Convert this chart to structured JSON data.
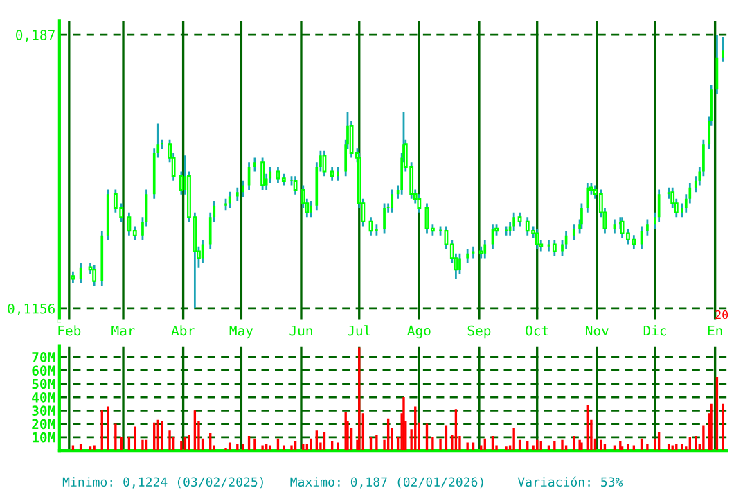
{
  "chart_data": [
    {
      "type": "candlestick",
      "color": "#00ff00",
      "x": [
        "2025-02-03",
        "2025-02-07",
        "2025-02-12",
        "2025-02-14",
        "2025-02-18",
        "2025-02-21",
        "2025-02-25",
        "2025-02-28",
        "2025-03-04",
        "2025-03-07",
        "2025-03-11",
        "2025-03-13",
        "2025-03-17",
        "2025-03-19",
        "2025-03-21",
        "2025-03-25",
        "2025-03-27",
        "2025-03-31",
        "2025-04-02",
        "2025-04-04",
        "2025-04-07",
        "2025-04-09",
        "2025-04-11",
        "2025-04-15",
        "2025-04-17",
        "2025-04-23",
        "2025-04-25",
        "2025-04-29",
        "2025-05-02",
        "2025-05-05",
        "2025-05-08",
        "2025-05-12",
        "2025-05-14",
        "2025-05-16",
        "2025-05-20",
        "2025-05-23",
        "2025-05-27",
        "2025-05-29",
        "2025-06-02",
        "2025-06-04",
        "2025-06-06",
        "2025-06-09",
        "2025-06-11",
        "2025-06-13",
        "2025-06-17",
        "2025-06-20",
        "2025-06-24",
        "2025-06-25",
        "2025-06-27",
        "2025-06-30",
        "2025-07-01",
        "2025-07-03",
        "2025-07-07",
        "2025-07-10",
        "2025-07-14",
        "2025-07-16",
        "2025-07-18",
        "2025-07-21",
        "2025-07-23",
        "2025-07-24",
        "2025-07-25",
        "2025-07-28",
        "2025-07-30",
        "2025-08-01",
        "2025-08-05",
        "2025-08-08",
        "2025-08-12",
        "2025-08-15",
        "2025-08-18",
        "2025-08-20",
        "2025-08-22",
        "2025-08-26",
        "2025-08-29",
        "2025-09-02",
        "2025-09-04",
        "2025-09-08",
        "2025-09-10",
        "2025-09-15",
        "2025-09-17",
        "2025-09-19",
        "2025-09-22",
        "2025-09-26",
        "2025-09-29",
        "2025-10-01",
        "2025-10-03",
        "2025-10-07",
        "2025-10-10",
        "2025-10-14",
        "2025-10-16",
        "2025-10-20",
        "2025-10-23",
        "2025-10-24",
        "2025-10-27",
        "2025-10-29",
        "2025-10-31",
        "2025-11-03",
        "2025-11-05",
        "2025-11-10",
        "2025-11-13",
        "2025-11-14",
        "2025-11-17",
        "2025-11-20",
        "2025-11-24",
        "2025-11-27",
        "2025-12-01",
        "2025-12-03",
        "2025-12-08",
        "2025-12-10",
        "2025-12-12",
        "2025-12-15",
        "2025-12-17",
        "2025-12-19",
        "2025-12-22",
        "2025-12-24",
        "2025-12-26",
        "2025-12-29",
        "2025-12-30",
        "2026-01-02",
        "2026-01-05"
      ],
      "ohlc": [
        [
          0.124,
          0.1252,
          0.1221,
          0.1233
        ],
        [
          0.1233,
          0.1275,
          0.1221,
          0.1263
        ],
        [
          0.1263,
          0.1275,
          0.1245,
          0.1257
        ],
        [
          0.1257,
          0.1269,
          0.1215,
          0.1227
        ],
        [
          0.1227,
          0.1358,
          0.1215,
          0.1346
        ],
        [
          0.1346,
          0.1466,
          0.1334,
          0.1454
        ],
        [
          0.1454,
          0.1466,
          0.1406,
          0.1418
        ],
        [
          0.1418,
          0.143,
          0.1382,
          0.1394
        ],
        [
          0.1394,
          0.1406,
          0.1346,
          0.1358
        ],
        [
          0.1358,
          0.137,
          0.1334,
          0.1346
        ],
        [
          0.1346,
          0.1394,
          0.1334,
          0.1382
        ],
        [
          0.1382,
          0.1466,
          0.137,
          0.1454
        ],
        [
          0.1454,
          0.1573,
          0.1442,
          0.1561
        ],
        [
          0.1561,
          0.1638,
          0.1549,
          0.1584
        ],
        [
          0.1584,
          0.1596,
          0.1572,
          0.1584
        ],
        [
          0.1584,
          0.1596,
          0.1537,
          0.1549
        ],
        [
          0.1549,
          0.1561,
          0.1489,
          0.1501
        ],
        [
          0.1501,
          0.1513,
          0.1453,
          0.1465
        ],
        [
          0.1465,
          0.1555,
          0.1453,
          0.1501
        ],
        [
          0.1501,
          0.1513,
          0.1382,
          0.1394
        ],
        [
          0.1394,
          0.1406,
          0.1156,
          0.1305
        ],
        [
          0.1305,
          0.1317,
          0.1263,
          0.1287
        ],
        [
          0.1287,
          0.1335,
          0.1275,
          0.1323
        ],
        [
          0.1323,
          0.1406,
          0.1311,
          0.1394
        ],
        [
          0.1394,
          0.1436,
          0.1382,
          0.1424
        ],
        [
          0.1424,
          0.1442,
          0.1412,
          0.143
        ],
        [
          0.143,
          0.146,
          0.1418,
          0.1448
        ],
        [
          0.1448,
          0.1471,
          0.1436,
          0.1459
        ],
        [
          0.1459,
          0.1489,
          0.1447,
          0.1477
        ],
        [
          0.1477,
          0.1537,
          0.1465,
          0.1525
        ],
        [
          0.1525,
          0.1549,
          0.1513,
          0.1537
        ],
        [
          0.1537,
          0.1549,
          0.1465,
          0.1477
        ],
        [
          0.1477,
          0.1507,
          0.1465,
          0.1495
        ],
        [
          0.1495,
          0.1525,
          0.1483,
          0.1513
        ],
        [
          0.1513,
          0.1525,
          0.1483,
          0.1495
        ],
        [
          0.1495,
          0.1507,
          0.1477,
          0.1489
        ],
        [
          0.1489,
          0.1501,
          0.1477,
          0.1489
        ],
        [
          0.1489,
          0.1501,
          0.1453,
          0.1465
        ],
        [
          0.1465,
          0.1477,
          0.1418,
          0.143
        ],
        [
          0.143,
          0.1442,
          0.1394,
          0.1406
        ],
        [
          0.1406,
          0.1436,
          0.1394,
          0.1424
        ],
        [
          0.1424,
          0.1537,
          0.1412,
          0.1525
        ],
        [
          0.1525,
          0.1567,
          0.1513,
          0.1555
        ],
        [
          0.1555,
          0.1567,
          0.1501,
          0.1513
        ],
        [
          0.1513,
          0.1525,
          0.1489,
          0.1501
        ],
        [
          0.1501,
          0.1525,
          0.1489,
          0.1513
        ],
        [
          0.1513,
          0.1596,
          0.1501,
          0.1584
        ],
        [
          0.1584,
          0.1668,
          0.1572,
          0.1632
        ],
        [
          0.1632,
          0.1644,
          0.1549,
          0.1561
        ],
        [
          0.1561,
          0.1573,
          0.1537,
          0.1549
        ],
        [
          0.1549,
          0.1561,
          0.1418,
          0.143
        ],
        [
          0.143,
          0.1442,
          0.137,
          0.1382
        ],
        [
          0.1382,
          0.1394,
          0.1346,
          0.1358
        ],
        [
          0.1358,
          0.1376,
          0.1346,
          0.1364
        ],
        [
          0.1364,
          0.143,
          0.1352,
          0.1418
        ],
        [
          0.1418,
          0.143,
          0.1406,
          0.1418
        ],
        [
          0.1418,
          0.1466,
          0.1406,
          0.1454
        ],
        [
          0.1454,
          0.1477,
          0.1442,
          0.1465
        ],
        [
          0.1465,
          0.1561,
          0.1453,
          0.1549
        ],
        [
          0.1549,
          0.1668,
          0.1537,
          0.1584
        ],
        [
          0.1584,
          0.1596,
          0.1513,
          0.1525
        ],
        [
          0.1525,
          0.1537,
          0.1442,
          0.1454
        ],
        [
          0.1454,
          0.1466,
          0.143,
          0.1442
        ],
        [
          0.1442,
          0.1454,
          0.1406,
          0.1418
        ],
        [
          0.1418,
          0.143,
          0.1352,
          0.1364
        ],
        [
          0.1364,
          0.1376,
          0.1346,
          0.1358
        ],
        [
          0.1358,
          0.137,
          0.1346,
          0.1358
        ],
        [
          0.1358,
          0.137,
          0.1311,
          0.1323
        ],
        [
          0.1323,
          0.1335,
          0.1275,
          0.1287
        ],
        [
          0.1287,
          0.1299,
          0.1233,
          0.1257
        ],
        [
          0.1257,
          0.1299,
          0.1245,
          0.1287
        ],
        [
          0.1287,
          0.1311,
          0.1275,
          0.1299
        ],
        [
          0.1299,
          0.1317,
          0.1287,
          0.1305
        ],
        [
          0.1305,
          0.1317,
          0.1287,
          0.1299
        ],
        [
          0.1299,
          0.1335,
          0.1287,
          0.1323
        ],
        [
          0.1323,
          0.1376,
          0.1311,
          0.1364
        ],
        [
          0.1364,
          0.1376,
          0.1346,
          0.1358
        ],
        [
          0.1358,
          0.137,
          0.1346,
          0.1358
        ],
        [
          0.1358,
          0.1382,
          0.1346,
          0.137
        ],
        [
          0.137,
          0.1406,
          0.1358,
          0.1394
        ],
        [
          0.1394,
          0.1406,
          0.137,
          0.1382
        ],
        [
          0.1382,
          0.1394,
          0.1346,
          0.1358
        ],
        [
          0.1358,
          0.137,
          0.134,
          0.1352
        ],
        [
          0.1352,
          0.1364,
          0.1311,
          0.1323
        ],
        [
          0.1323,
          0.1335,
          0.1305,
          0.1317
        ],
        [
          0.1317,
          0.1335,
          0.1305,
          0.1323
        ],
        [
          0.1323,
          0.1335,
          0.1293,
          0.1305
        ],
        [
          0.1305,
          0.1335,
          0.1293,
          0.1323
        ],
        [
          0.1323,
          0.1358,
          0.1311,
          0.1346
        ],
        [
          0.1346,
          0.1376,
          0.1334,
          0.1364
        ],
        [
          0.1364,
          0.1388,
          0.1352,
          0.1376
        ],
        [
          0.1376,
          0.143,
          0.1364,
          0.1418
        ],
        [
          0.1418,
          0.1483,
          0.1406,
          0.1471
        ],
        [
          0.1471,
          0.1483,
          0.1453,
          0.1465
        ],
        [
          0.1465,
          0.1477,
          0.1442,
          0.1454
        ],
        [
          0.1454,
          0.1466,
          0.1394,
          0.1406
        ],
        [
          0.1406,
          0.1418,
          0.1352,
          0.1364
        ],
        [
          0.1364,
          0.1388,
          0.1352,
          0.1376
        ],
        [
          0.1376,
          0.1394,
          0.1364,
          0.1382
        ],
        [
          0.1382,
          0.1394,
          0.134,
          0.1352
        ],
        [
          0.1352,
          0.1364,
          0.1323,
          0.1335
        ],
        [
          0.1335,
          0.1347,
          0.1311,
          0.1323
        ],
        [
          0.1323,
          0.137,
          0.1311,
          0.1358
        ],
        [
          0.1358,
          0.1388,
          0.1346,
          0.1376
        ],
        [
          0.1376,
          0.1406,
          0.1364,
          0.1394
        ],
        [
          0.1394,
          0.1466,
          0.1382,
          0.1454
        ],
        [
          0.1454,
          0.1471,
          0.1442,
          0.1459
        ],
        [
          0.1459,
          0.1471,
          0.1418,
          0.143
        ],
        [
          0.143,
          0.1442,
          0.1394,
          0.1406
        ],
        [
          0.1406,
          0.143,
          0.1394,
          0.1418
        ],
        [
          0.1418,
          0.1454,
          0.1406,
          0.1442
        ],
        [
          0.1442,
          0.1483,
          0.143,
          0.1471
        ],
        [
          0.1471,
          0.1501,
          0.1459,
          0.1489
        ],
        [
          0.1489,
          0.1525,
          0.1477,
          0.1513
        ],
        [
          0.1513,
          0.1596,
          0.1501,
          0.1584
        ],
        [
          0.1584,
          0.1656,
          0.1572,
          0.1644
        ],
        [
          0.1644,
          0.1739,
          0.1632,
          0.1727
        ],
        [
          0.1727,
          0.187,
          0.1715,
          0.1811
        ],
        [
          0.1811,
          0.1865,
          0.18,
          0.183
        ]
      ],
      "xlim": [
        "2025-01-27",
        "2026-01-07"
      ],
      "ylim": [
        0.1122,
        0.1906
      ],
      "yticks": [
        {
          "value": 0.1156,
          "label": "0,1156"
        },
        {
          "value": 0.187,
          "label": "0,187"
        }
      ],
      "xticks": [
        {
          "value": "2025-02-01",
          "label": "Feb"
        },
        {
          "value": "2025-03-01",
          "label": "Mar"
        },
        {
          "value": "2025-04-01",
          "label": "Abr"
        },
        {
          "value": "2025-05-01",
          "label": "May"
        },
        {
          "value": "2025-06-01",
          "label": "Jun"
        },
        {
          "value": "2025-07-01",
          "label": "Jul"
        },
        {
          "value": "2025-08-01",
          "label": "Ago"
        },
        {
          "value": "2025-09-01",
          "label": "Sep"
        },
        {
          "value": "2025-10-01",
          "label": "Oct"
        },
        {
          "value": "2025-11-01",
          "label": "Nov"
        },
        {
          "value": "2025-12-01",
          "label": "Dic"
        },
        {
          "value": "2026-01-01",
          "label": "En"
        }
      ],
      "grid": true,
      "annotations": [
        "20"
      ]
    },
    {
      "type": "bar",
      "color": "#ff0000",
      "x": [
        "2025-02-03",
        "2025-02-07",
        "2025-02-12",
        "2025-02-14",
        "2025-02-18",
        "2025-02-21",
        "2025-02-25",
        "2025-02-28",
        "2025-03-04",
        "2025-03-07",
        "2025-03-11",
        "2025-03-13",
        "2025-03-17",
        "2025-03-19",
        "2025-03-21",
        "2025-03-25",
        "2025-03-27",
        "2025-03-31",
        "2025-04-02",
        "2025-04-04",
        "2025-04-07",
        "2025-04-09",
        "2025-04-11",
        "2025-04-15",
        "2025-04-17",
        "2025-04-23",
        "2025-04-25",
        "2025-04-29",
        "2025-05-02",
        "2025-05-05",
        "2025-05-08",
        "2025-05-12",
        "2025-05-14",
        "2025-05-16",
        "2025-05-20",
        "2025-05-23",
        "2025-05-27",
        "2025-05-29",
        "2025-06-02",
        "2025-06-04",
        "2025-06-06",
        "2025-06-09",
        "2025-06-11",
        "2025-06-13",
        "2025-06-17",
        "2025-06-20",
        "2025-06-24",
        "2025-06-25",
        "2025-06-27",
        "2025-06-30",
        "2025-07-01",
        "2025-07-03",
        "2025-07-07",
        "2025-07-10",
        "2025-07-14",
        "2025-07-16",
        "2025-07-18",
        "2025-07-21",
        "2025-07-23",
        "2025-07-24",
        "2025-07-25",
        "2025-07-28",
        "2025-07-30",
        "2025-08-01",
        "2025-08-05",
        "2025-08-08",
        "2025-08-12",
        "2025-08-15",
        "2025-08-18",
        "2025-08-20",
        "2025-08-22",
        "2025-08-26",
        "2025-08-29",
        "2025-09-02",
        "2025-09-04",
        "2025-09-08",
        "2025-09-10",
        "2025-09-15",
        "2025-09-17",
        "2025-09-19",
        "2025-09-22",
        "2025-09-26",
        "2025-09-29",
        "2025-10-01",
        "2025-10-03",
        "2025-10-07",
        "2025-10-10",
        "2025-10-14",
        "2025-10-16",
        "2025-10-20",
        "2025-10-23",
        "2025-10-24",
        "2025-10-27",
        "2025-10-29",
        "2025-10-31",
        "2025-11-03",
        "2025-11-05",
        "2025-11-10",
        "2025-11-13",
        "2025-11-14",
        "2025-11-17",
        "2025-11-20",
        "2025-11-24",
        "2025-11-27",
        "2025-12-01",
        "2025-12-03",
        "2025-12-08",
        "2025-12-10",
        "2025-12-12",
        "2025-12-15",
        "2025-12-17",
        "2025-12-19",
        "2025-12-22",
        "2025-12-24",
        "2025-12-26",
        "2025-12-29",
        "2025-12-30",
        "2026-01-02",
        "2026-01-05"
      ],
      "values": [
        4,
        5,
        3,
        4,
        30,
        33,
        20,
        10,
        10,
        18,
        8,
        8,
        21,
        23,
        22,
        15,
        10,
        7,
        10,
        12,
        30,
        22,
        9,
        13,
        4,
        2,
        6,
        5,
        5,
        11,
        9,
        4,
        5,
        4,
        9,
        4,
        4,
        7,
        5,
        5,
        9,
        15,
        6,
        14,
        7,
        6,
        29,
        22,
        17,
        8,
        77,
        28,
        10,
        12,
        8,
        24,
        17,
        10,
        28,
        40,
        22,
        16,
        33,
        21,
        20,
        10,
        9,
        19,
        12,
        31,
        11,
        6,
        6,
        4,
        9,
        11,
        4,
        3,
        4,
        17,
        8,
        7,
        4,
        8,
        7,
        4,
        7,
        8,
        4,
        11,
        8,
        6,
        34,
        23,
        9,
        8,
        5,
        4,
        7,
        3,
        5,
        4,
        9,
        5,
        9,
        14,
        5,
        4,
        5,
        5,
        3,
        10,
        11,
        5,
        19,
        28,
        35,
        55,
        35
      ],
      "xlim": [
        "2025-01-27",
        "2026-01-07"
      ],
      "ylim": [
        0,
        78
      ],
      "yticks": [
        {
          "value": 10,
          "label": "10M"
        },
        {
          "value": 20,
          "label": "20M"
        },
        {
          "value": 30,
          "label": "30M"
        },
        {
          "value": 40,
          "label": "40M"
        },
        {
          "value": 50,
          "label": "50M"
        },
        {
          "value": 60,
          "label": "60M"
        },
        {
          "value": 70,
          "label": "70M"
        }
      ],
      "xticks": [
        {
          "value": "2025-02-01",
          "label": null
        },
        {
          "value": "2025-03-01",
          "label": null
        },
        {
          "value": "2025-04-01",
          "label": null
        },
        {
          "value": "2025-05-01",
          "label": null
        },
        {
          "value": "2025-06-01",
          "label": null
        },
        {
          "value": "2025-07-01",
          "label": null
        },
        {
          "value": "2025-08-01",
          "label": null
        },
        {
          "value": "2025-09-01",
          "label": null
        },
        {
          "value": "2025-10-01",
          "label": null
        },
        {
          "value": "2025-11-01",
          "label": null
        },
        {
          "value": "2025-12-01",
          "label": null
        },
        {
          "value": "2026-01-01",
          "label": null
        }
      ],
      "grid": true,
      "tick_labels": "y",
      "annotations": [
        "Minimo: 0,1224 (03/02/2025)",
        "Maximo: 0,187 (02/01/2026)",
        "Variación: 53%"
      ]
    }
  ]
}
